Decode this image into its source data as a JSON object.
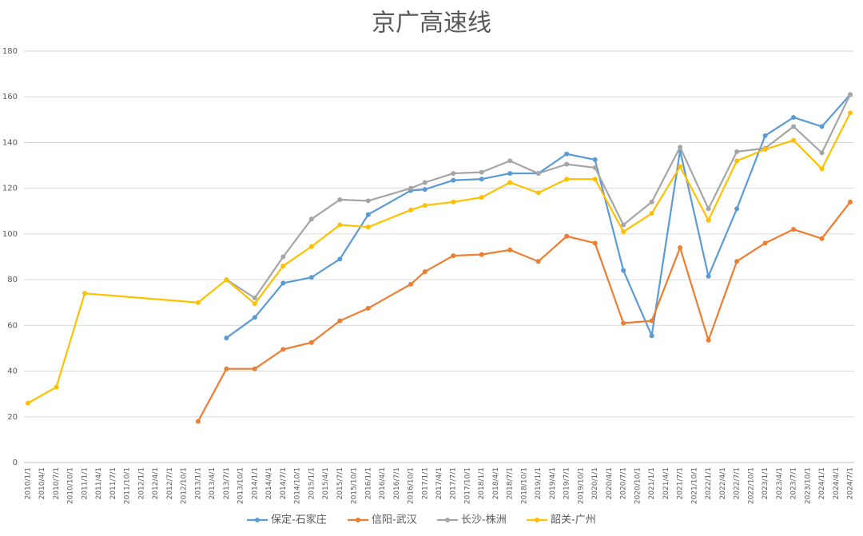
{
  "chart_data": {
    "type": "line",
    "title": "京广高速线",
    "categories": [
      "2010/1/1",
      "2010/4/1",
      "2010/7/1",
      "2010/10/1",
      "2011/1/1",
      "2011/4/1",
      "2011/7/1",
      "2011/10/1",
      "2012/1/1",
      "2012/4/1",
      "2012/7/1",
      "2012/10/1",
      "2013/1/1",
      "2013/4/1",
      "2013/7/1",
      "2013/10/1",
      "2014/1/1",
      "2014/4/1",
      "2014/7/1",
      "2014/10/1",
      "2015/1/1",
      "2015/4/1",
      "2015/7/1",
      "2015/10/1",
      "2016/1/1",
      "2016/4/1",
      "2016/7/1",
      "2016/10/1",
      "2017/1/1",
      "2017/4/1",
      "2017/7/1",
      "2017/10/1",
      "2018/1/1",
      "2018/4/1",
      "2018/7/1",
      "2018/10/1",
      "2019/1/1",
      "2019/4/1",
      "2019/7/1",
      "2019/10/1",
      "2020/1/1",
      "2020/4/1",
      "2020/7/1",
      "2020/10/1",
      "2021/1/1",
      "2021/4/1",
      "2021/7/1",
      "2021/10/1",
      "2022/1/1",
      "2022/4/1",
      "2022/7/1",
      "2022/10/1",
      "2023/1/1",
      "2023/4/1",
      "2023/7/1",
      "2023/10/1",
      "2024/1/1",
      "2024/4/1",
      "2024/7/1"
    ],
    "series": [
      {
        "name": "保定-石家庄",
        "color": "#5b9bd5",
        "values": [
          null,
          null,
          null,
          null,
          null,
          null,
          null,
          null,
          null,
          null,
          null,
          null,
          null,
          null,
          54.5,
          null,
          63.5,
          null,
          78.5,
          null,
          81,
          null,
          89,
          null,
          108.5,
          null,
          null,
          119,
          119.5,
          null,
          123.5,
          null,
          124,
          null,
          126.5,
          null,
          126.5,
          null,
          135,
          null,
          132.5,
          null,
          84,
          null,
          55.5,
          null,
          136.5,
          null,
          81.5,
          null,
          111,
          null,
          143,
          null,
          151,
          null,
          147,
          null,
          161
        ]
      },
      {
        "name": "信阳-武汉",
        "color": "#ed7d31",
        "values": [
          null,
          null,
          null,
          null,
          null,
          null,
          null,
          null,
          null,
          null,
          null,
          null,
          18,
          null,
          41,
          null,
          41,
          null,
          49.5,
          null,
          52.5,
          null,
          62,
          null,
          67.5,
          null,
          null,
          78,
          83.5,
          null,
          90.5,
          null,
          91,
          null,
          93,
          null,
          88,
          null,
          99,
          null,
          96,
          null,
          61,
          null,
          62,
          null,
          94,
          null,
          53.5,
          null,
          88,
          null,
          96,
          null,
          102,
          null,
          98,
          null,
          114
        ]
      },
      {
        "name": "长沙-株洲",
        "color": "#a5a5a5",
        "values": [
          null,
          null,
          null,
          null,
          null,
          null,
          null,
          null,
          null,
          null,
          null,
          null,
          null,
          null,
          80,
          null,
          72,
          null,
          90,
          null,
          106.5,
          null,
          115,
          null,
          114.5,
          null,
          null,
          120,
          122.5,
          null,
          126.5,
          null,
          127,
          null,
          132,
          null,
          126.5,
          null,
          130.5,
          null,
          129,
          null,
          104,
          null,
          114,
          null,
          138,
          null,
          111,
          null,
          136,
          null,
          137.5,
          null,
          147,
          null,
          135.5,
          null,
          161
        ]
      },
      {
        "name": "韶关-广州",
        "color": "#ffc000",
        "values": [
          26,
          null,
          33,
          null,
          74,
          null,
          null,
          null,
          null,
          null,
          null,
          null,
          70,
          null,
          80,
          null,
          69.5,
          null,
          86,
          null,
          94.5,
          null,
          104,
          null,
          103,
          null,
          null,
          110.5,
          112.5,
          null,
          114,
          null,
          116,
          null,
          122.5,
          null,
          118,
          null,
          124,
          null,
          124,
          null,
          101,
          null,
          109,
          null,
          129.5,
          null,
          106,
          null,
          132,
          null,
          137,
          null,
          141,
          null,
          128.5,
          null,
          153
        ]
      }
    ],
    "ylim": [
      0,
      180
    ],
    "yticks": [
      0,
      20,
      40,
      60,
      80,
      100,
      120,
      140,
      160,
      180
    ],
    "grid": true,
    "span_gaps": true,
    "legend": "bottom"
  }
}
